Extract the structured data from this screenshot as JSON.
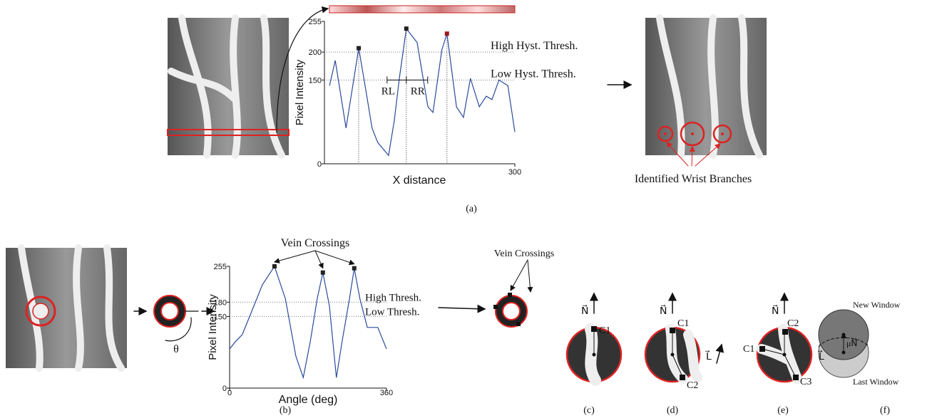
{
  "chart_data": [
    {
      "type": "line",
      "y_label": "Pixel Intensity",
      "x_label": "X distance",
      "xlim": [
        0,
        300
      ],
      "ylim": [
        0,
        255
      ],
      "xticks": [
        300
      ],
      "yticks": [
        0,
        150,
        200,
        255
      ],
      "series": [
        {
          "color": "#2b4a9b",
          "x": [
            8,
            17,
            34,
            54,
            64,
            75,
            84,
            101,
            110,
            118,
            129,
            146,
            163,
            171,
            185,
            193,
            208,
            219,
            230,
            244,
            255,
            264,
            275,
            289,
            300
          ],
          "values": [
            140,
            185,
            64,
            207,
            140,
            64,
            38,
            15,
            77,
            153,
            242,
            217,
            102,
            92,
            204,
            233,
            102,
            83,
            153,
            102,
            121,
            115,
            150,
            140,
            57
          ]
        }
      ],
      "peaks": {
        "x": [
          54,
          129,
          193
        ],
        "values": [
          207,
          242,
          233
        ],
        "colors": [
          "#222222",
          "#222222",
          "#9b1b1b"
        ]
      },
      "annotations": [
        {
          "text": "High Hyst. Thresh.",
          "y": 200
        },
        {
          "text": "Low Hyst. Thresh.",
          "y": 150
        }
      ],
      "range_labels": [
        "RL",
        "RR"
      ]
    },
    {
      "type": "line",
      "y_label": "Pixel Intensity",
      "x_label": "Angle (deg)",
      "xlim": [
        0,
        360
      ],
      "ylim": [
        0,
        255
      ],
      "xticks": [
        0,
        360
      ],
      "yticks": [
        0,
        150,
        180,
        255
      ],
      "series": [
        {
          "color": "#2b4a9b",
          "x": [
            0,
            13,
            29,
            49,
            75,
            103,
            128,
            152,
            169,
            185,
            201,
            214,
            229,
            245,
            258,
            275,
            286,
            299,
            316,
            340,
            360
          ],
          "values": [
            82,
            97,
            112,
            157,
            216,
            255,
            187,
            67,
            22,
            97,
            187,
            242,
            172,
            22,
            97,
            187,
            251,
            187,
            127,
            127,
            82
          ]
        }
      ],
      "peaks": {
        "x": [
          103,
          214,
          286
        ],
        "values": [
          255,
          242,
          251
        ],
        "colors": [
          "#222222",
          "#222222",
          "#222222"
        ]
      },
      "annotations": [
        {
          "text": "High Thresh.",
          "y": 180
        },
        {
          "text": "Low Thresh.",
          "y": 150
        }
      ],
      "callout": "Vein Crossings"
    }
  ],
  "figure": {
    "branches_label": "Identified Wrist Branches",
    "theta": "θ",
    "crossings_label": "Vein Crossings",
    "n_vector": "N⃗",
    "l_vector": "L⃗",
    "c1": "C1",
    "c2": "C2",
    "c3": "C3",
    "new_window": "New Window",
    "last_window": "Last Window",
    "mu_n": "μN⃗",
    "panels": [
      "(a)",
      "(b)",
      "(c)",
      "(d)",
      "(e)",
      "(f)"
    ]
  }
}
